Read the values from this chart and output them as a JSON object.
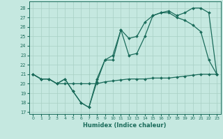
{
  "xlabel": "Humidex (Indice chaleur)",
  "bg_color": "#c5e8e0",
  "line_color": "#1a6b5a",
  "grid_color": "#a8cfc4",
  "x_ticks": [
    0,
    1,
    2,
    3,
    4,
    5,
    6,
    7,
    8,
    9,
    10,
    11,
    12,
    13,
    14,
    15,
    16,
    17,
    18,
    19,
    20,
    21,
    22,
    23
  ],
  "y_ticks": [
    17,
    18,
    19,
    20,
    21,
    22,
    23,
    24,
    25,
    26,
    27,
    28
  ],
  "ylim": [
    16.8,
    28.7
  ],
  "xlim": [
    -0.5,
    23.5
  ],
  "line1_x": [
    0,
    1,
    2,
    3,
    4,
    5,
    6,
    7,
    8,
    9,
    10,
    11,
    12,
    13,
    14,
    15,
    16,
    17,
    18,
    19,
    20,
    21,
    22,
    23
  ],
  "line1_y": [
    21.0,
    20.5,
    20.5,
    20.0,
    20.0,
    20.0,
    20.0,
    20.0,
    20.0,
    20.2,
    20.3,
    20.4,
    20.5,
    20.5,
    20.5,
    20.6,
    20.6,
    20.6,
    20.7,
    20.8,
    20.9,
    21.0,
    21.0,
    21.0
  ],
  "line2_x": [
    0,
    1,
    2,
    3,
    4,
    5,
    6,
    7,
    8,
    9,
    10,
    11,
    12,
    13,
    14,
    15,
    16,
    17,
    18,
    19,
    20,
    21,
    22,
    23
  ],
  "line2_y": [
    21.0,
    20.5,
    20.5,
    20.0,
    20.5,
    19.2,
    18.0,
    17.5,
    20.2,
    22.5,
    22.5,
    25.7,
    23.0,
    23.2,
    25.0,
    27.2,
    27.5,
    27.5,
    27.0,
    26.7,
    26.2,
    25.5,
    22.5,
    21.0
  ],
  "line3_x": [
    0,
    1,
    2,
    3,
    4,
    5,
    6,
    7,
    8,
    9,
    10,
    11,
    12,
    13,
    14,
    15,
    16,
    17,
    18,
    19,
    20,
    21,
    22,
    23
  ],
  "line3_y": [
    21.0,
    20.5,
    20.5,
    20.0,
    20.5,
    19.2,
    18.0,
    17.5,
    20.5,
    22.5,
    23.0,
    25.7,
    24.8,
    25.0,
    26.5,
    27.2,
    27.5,
    27.7,
    27.2,
    27.5,
    28.0,
    28.0,
    27.5,
    21.0
  ]
}
